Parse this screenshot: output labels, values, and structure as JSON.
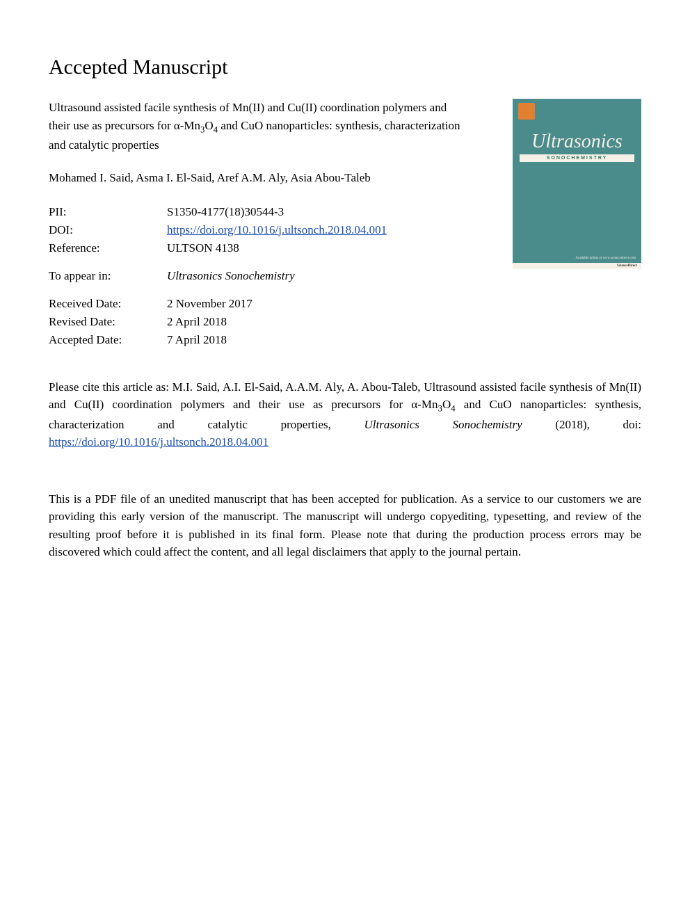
{
  "heading": "Accepted Manuscript",
  "title_html": "Ultrasound assisted facile synthesis of Mn(II) and Cu(II) coordination polymers and their use as precursors for α-Mn<sub>3</sub>O<sub>4</sub> and CuO nanoparticles: synthesis, characterization and catalytic properties",
  "authors": "Mohamed I. Said, Asma I. El-Said, Aref A.M. Aly, Asia Abou-Taleb",
  "meta": {
    "pii_label": "PII:",
    "pii_value": "S1350-4177(18)30544-3",
    "doi_label": "DOI:",
    "doi_value": "https://doi.org/10.1016/j.ultsonch.2018.04.001",
    "ref_label": "Reference:",
    "ref_value": "ULTSON 4138",
    "appear_label": "To appear in:",
    "appear_value": "Ultrasonics Sonochemistry",
    "received_label": "Received Date:",
    "received_value": "2 November 2017",
    "revised_label": "Revised Date:",
    "revised_value": "2 April 2018",
    "accepted_label": "Accepted Date:",
    "accepted_value": "7 April 2018"
  },
  "cite_prefix": "Please cite this article as: M.I. Said, A.I. El-Said, A.A.M. Aly, A. Abou-Taleb, Ultrasound assisted facile synthesis of Mn(II) and Cu(II) coordination polymers and their use as precursors for α-Mn",
  "cite_mid": "O",
  "cite_suffix": " and CuO nanoparticles: synthesis, characterization and catalytic properties, ",
  "cite_journal": "Ultrasonics Sonochemistry",
  "cite_year": " (2018), doi: ",
  "cite_doi": "https://doi.org/10.1016/j.ultsonch.2018.04.001",
  "disclaimer": "This is a PDF file of an unedited manuscript that has been accepted for publication. As a service to our customers we are providing this early version of the manuscript. The manuscript will undergo copyediting, typesetting, and review of the resulting proof before it is published in its final form. Please note that during the production process errors may be discovered which could affect the content, and all legal disclaimers that apply to the journal pertain.",
  "cover": {
    "title": "Ultrasonics",
    "subtitle": "SONOCHEMISTRY",
    "bottom_bar": "ScienceDirect",
    "colors": {
      "bg": "#4a8b8b",
      "title_color": "#f5f0e8",
      "subtitle_bg": "#f5f0e8",
      "subtitle_color": "#2a7a5a",
      "logo_bg": "#e08030"
    }
  },
  "colors": {
    "text": "#000000",
    "link": "#1a4db3",
    "background": "#ffffff"
  },
  "typography": {
    "heading_size_pt": 22,
    "body_size_pt": 13,
    "font_family": "Georgia / Times-like serif"
  }
}
